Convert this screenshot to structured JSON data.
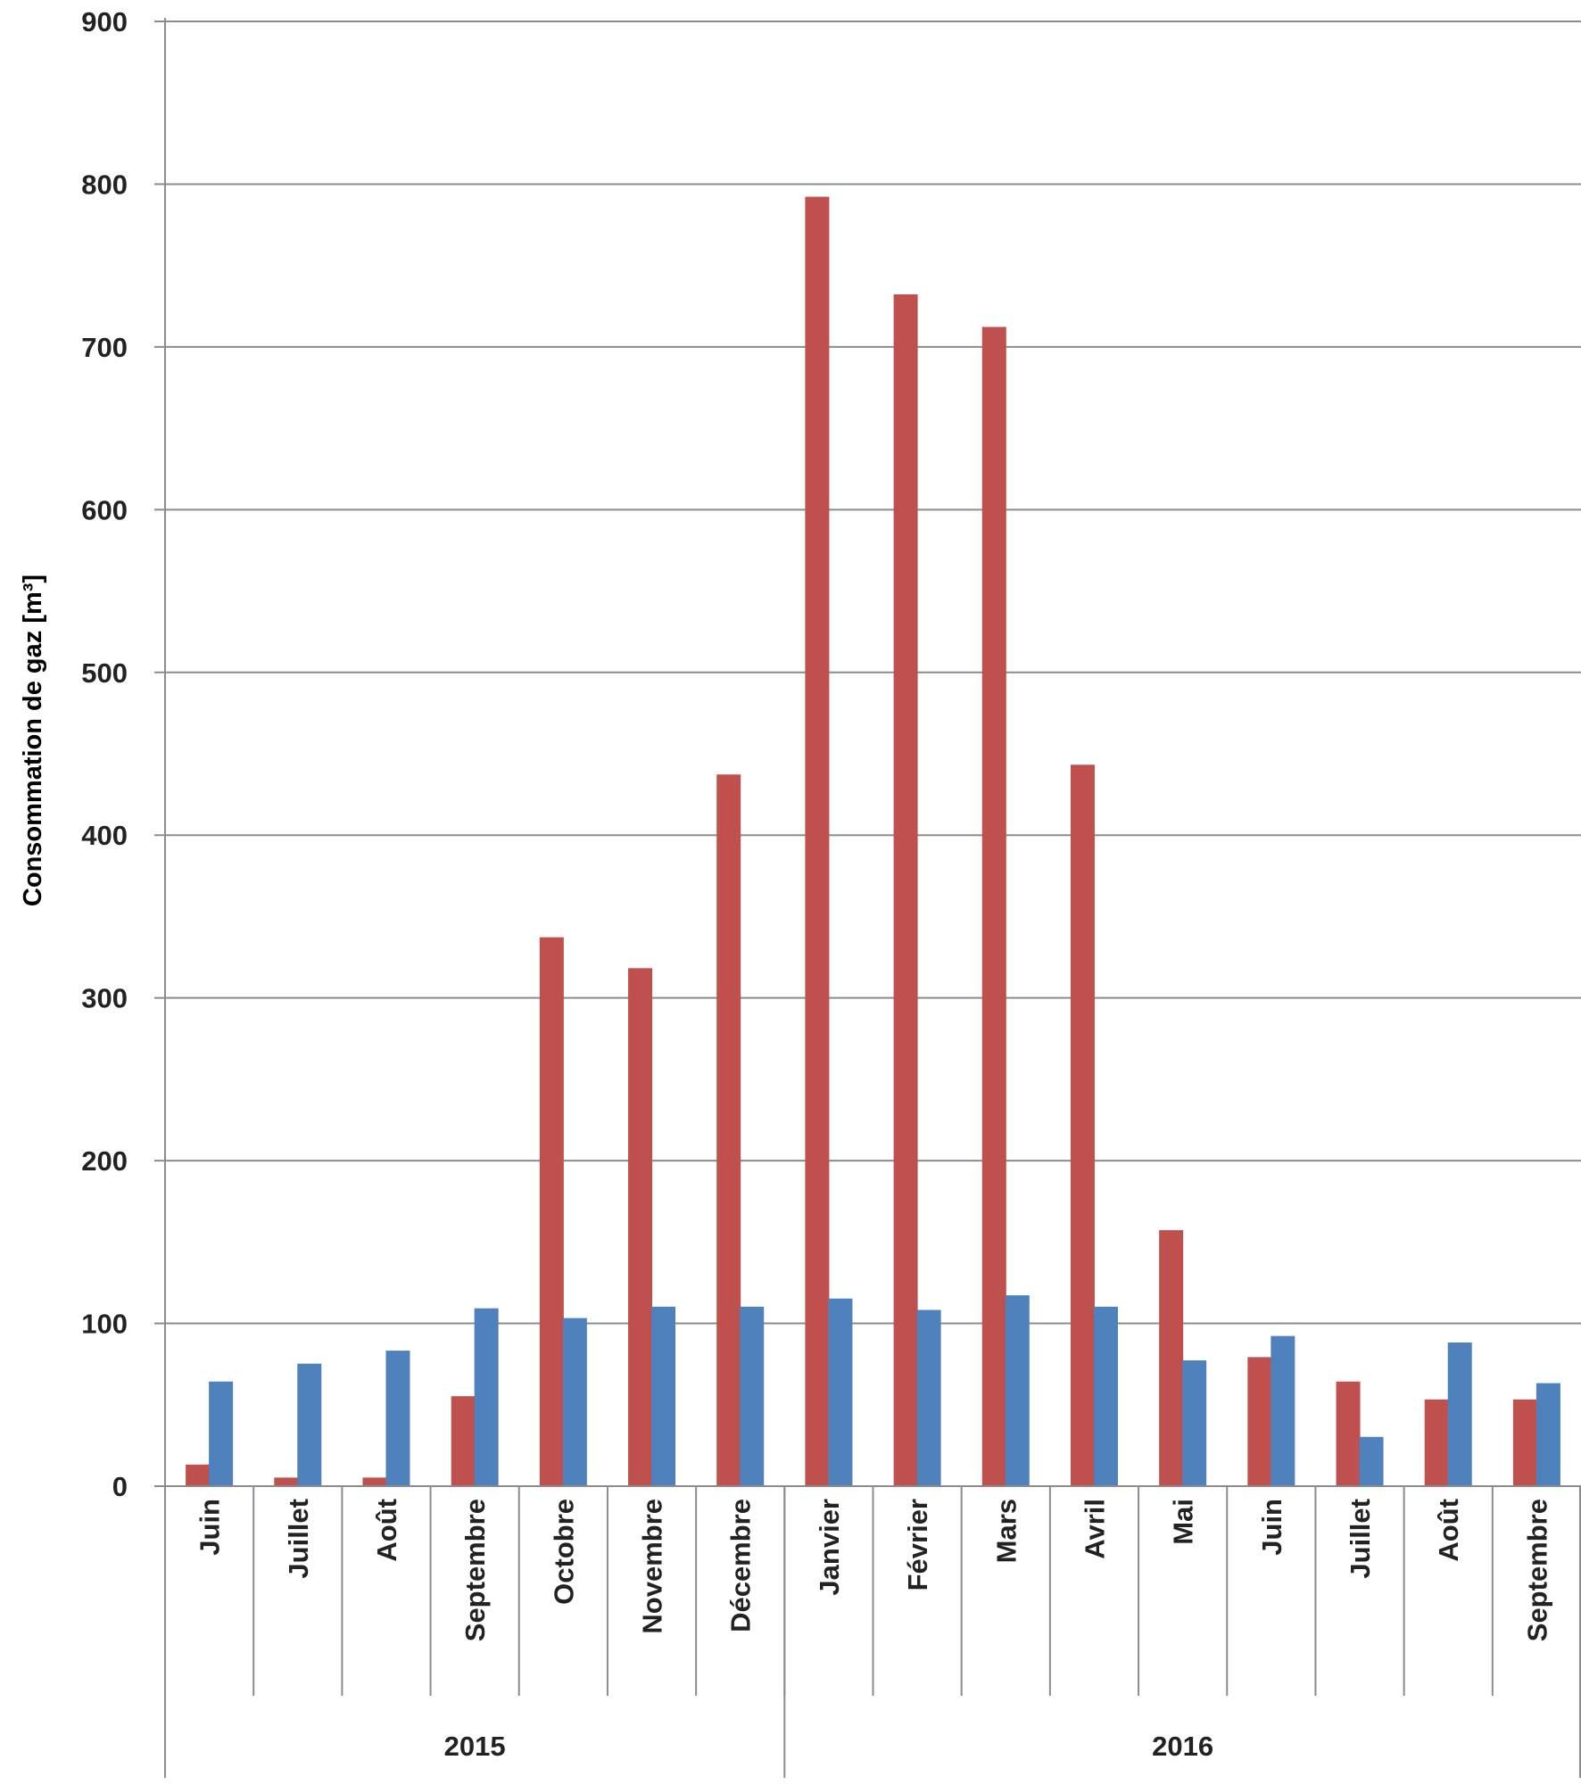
{
  "chart_data": {
    "type": "bar",
    "title": "",
    "xlabel": "",
    "ylabel": "Consommation de gaz [m³]",
    "ylim": [
      0,
      900
    ],
    "yticks": [
      0,
      100,
      200,
      300,
      400,
      500,
      600,
      700,
      800,
      900
    ],
    "grid": true,
    "legend": "none",
    "categories": [
      "Juin",
      "Juillet",
      "Août",
      "Septembre",
      "Octobre",
      "Novembre",
      "Décembre",
      "Janvier",
      "Février",
      "Mars",
      "Avril",
      "Mai",
      "Juin",
      "Juillet",
      "Août",
      "Septembre"
    ],
    "groups": [
      {
        "label": "2015",
        "span": 7
      },
      {
        "label": "2016",
        "span": 9
      }
    ],
    "series": [
      {
        "color": "#c0504d",
        "values": [
          13,
          5,
          5,
          55,
          337,
          318,
          437,
          792,
          732,
          712,
          443,
          157,
          79,
          64,
          53,
          53
        ]
      },
      {
        "color": "#4f81bd",
        "values": [
          64,
          75,
          83,
          109,
          103,
          110,
          110,
          115,
          108,
          117,
          110,
          77,
          92,
          30,
          88,
          63
        ]
      }
    ]
  }
}
